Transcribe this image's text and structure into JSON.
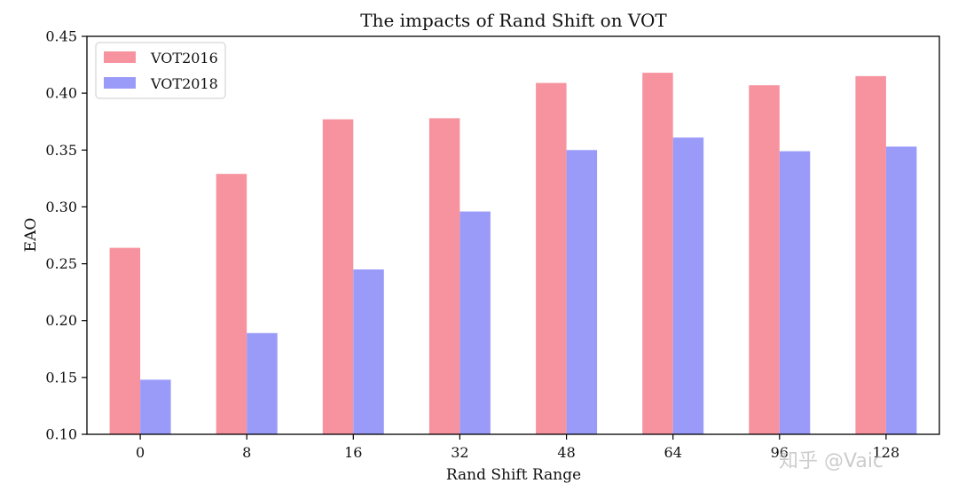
{
  "chart_data": {
    "type": "bar",
    "title": "The impacts of Rand Shift on VOT",
    "xlabel": "Rand Shift Range",
    "ylabel": "EAO",
    "categories": [
      "0",
      "8",
      "16",
      "32",
      "48",
      "64",
      "96",
      "128"
    ],
    "series": [
      {
        "name": "VOT2016",
        "color": "#f7939f",
        "values": [
          0.264,
          0.329,
          0.377,
          0.378,
          0.409,
          0.418,
          0.407,
          0.415
        ]
      },
      {
        "name": "VOT2018",
        "color": "#9a9bf9",
        "values": [
          0.148,
          0.189,
          0.245,
          0.296,
          0.35,
          0.361,
          0.349,
          0.353
        ]
      }
    ],
    "ylim": [
      0.1,
      0.45
    ],
    "yticks": [
      "0.10",
      "0.15",
      "0.20",
      "0.25",
      "0.30",
      "0.35",
      "0.40",
      "0.45"
    ],
    "legend_position": "top-left",
    "grid": false
  },
  "watermark": {
    "text": "知乎 @Vaic"
  }
}
